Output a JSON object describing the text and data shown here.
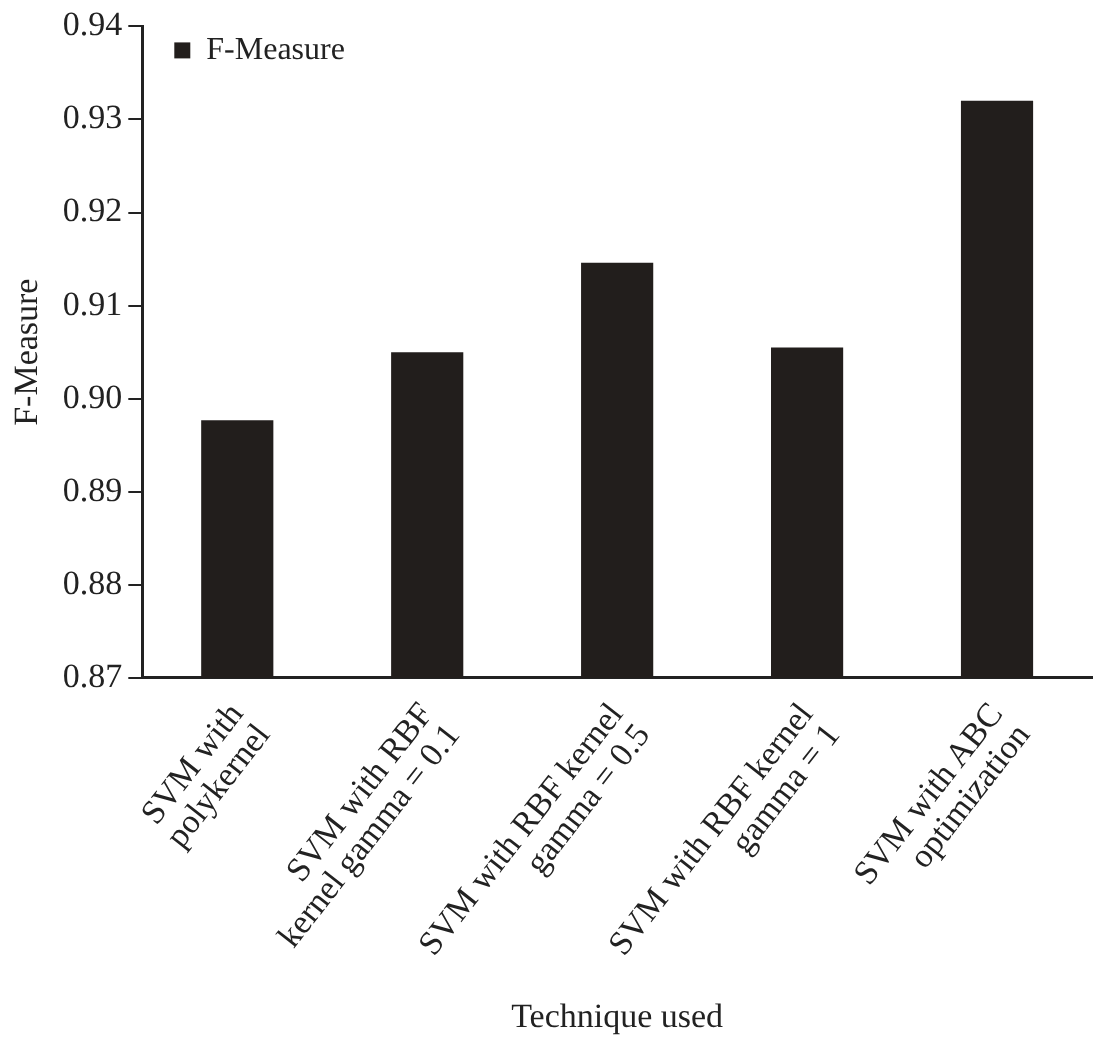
{
  "chart_data": {
    "type": "bar",
    "xlabel": "Technique used",
    "ylabel": "F-Measure",
    "categories": [
      "SVM with\npolykernel",
      "SVM with RBF\nkernel gamma = 0.1",
      "SVM with RBF kernel\ngamma = 0.5",
      "SVM with RBF kernel\ngamma = 1",
      "SVM with ABC\noptimization"
    ],
    "series": [
      {
        "name": "F-Measure",
        "color": "#221e1c",
        "values": [
          0.8977,
          0.905,
          0.9146,
          0.9055,
          0.932
        ]
      }
    ],
    "ylim": [
      0.87,
      0.94
    ],
    "yticks": [
      0.87,
      0.88,
      0.89,
      {
        "value": 0.9,
        "label": "0.90"
      },
      0.91,
      0.92,
      0.93,
      0.94
    ],
    "grid": false,
    "legend": "top left"
  }
}
